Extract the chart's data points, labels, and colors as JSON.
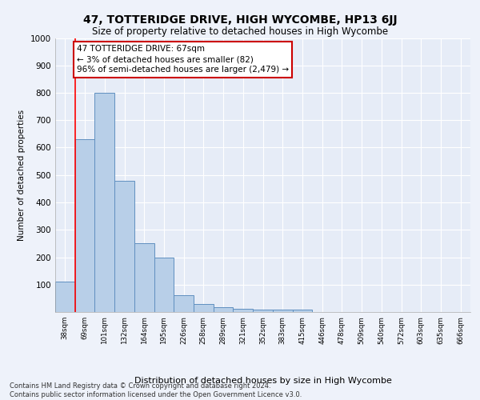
{
  "title": "47, TOTTERIDGE DRIVE, HIGH WYCOMBE, HP13 6JJ",
  "subtitle": "Size of property relative to detached houses in High Wycombe",
  "xlabel": "Distribution of detached houses by size in High Wycombe",
  "ylabel": "Number of detached properties",
  "bar_labels": [
    "38sqm",
    "69sqm",
    "101sqm",
    "132sqm",
    "164sqm",
    "195sqm",
    "226sqm",
    "258sqm",
    "289sqm",
    "321sqm",
    "352sqm",
    "383sqm",
    "415sqm",
    "446sqm",
    "478sqm",
    "509sqm",
    "540sqm",
    "572sqm",
    "603sqm",
    "635sqm",
    "666sqm"
  ],
  "bar_values": [
    110,
    630,
    800,
    478,
    250,
    200,
    60,
    28,
    18,
    12,
    10,
    10,
    10,
    0,
    0,
    0,
    0,
    0,
    0,
    0,
    0
  ],
  "bar_color": "#b8cfe8",
  "bar_edge_color": "#6090c0",
  "ylim": [
    0,
    1000
  ],
  "yticks": [
    0,
    100,
    200,
    300,
    400,
    500,
    600,
    700,
    800,
    900,
    1000
  ],
  "red_line_x": 0.5,
  "annotation_text": "47 TOTTERIDGE DRIVE: 67sqm\n← 3% of detached houses are smaller (82)\n96% of semi-detached houses are larger (2,479) →",
  "annotation_box_color": "#ffffff",
  "annotation_box_edge": "#cc0000",
  "footer_text": "Contains HM Land Registry data © Crown copyright and database right 2024.\nContains public sector information licensed under the Open Government Licence v3.0.",
  "background_color": "#eef2fa",
  "plot_background": "#e6ecf7"
}
